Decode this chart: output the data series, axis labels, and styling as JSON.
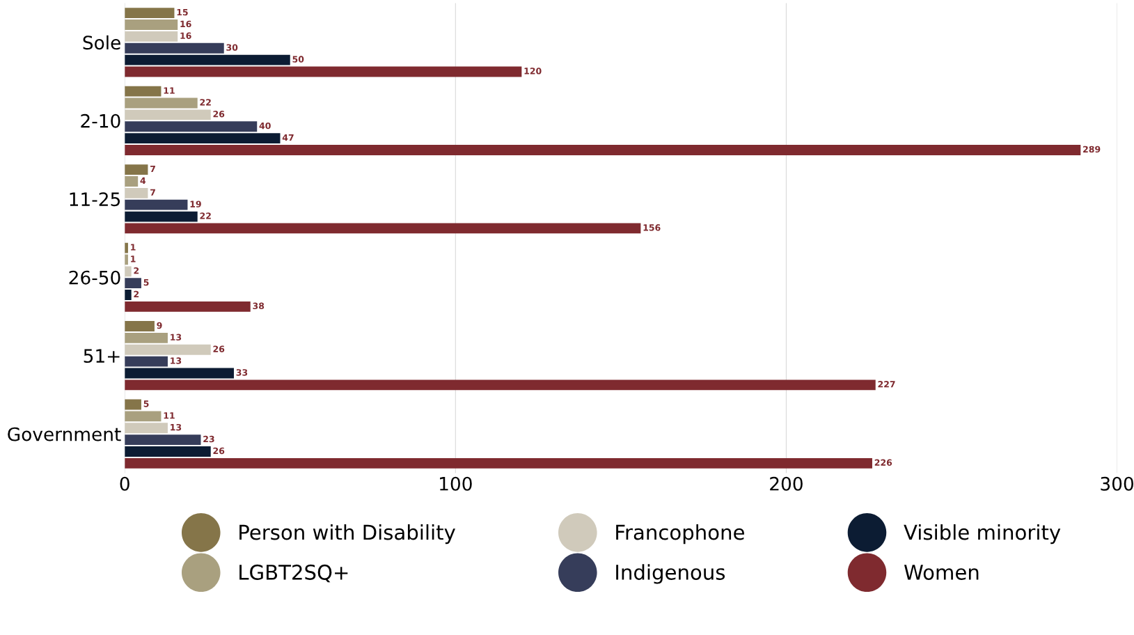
{
  "chart_data": {
    "type": "bar",
    "orientation": "horizontal",
    "categories": [
      "Sole",
      "2-10",
      "11-25",
      "26-50",
      "51+",
      "Government"
    ],
    "series": [
      {
        "name": "Person with Disability",
        "color": "#857549",
        "values": [
          15,
          11,
          7,
          1,
          9,
          5
        ]
      },
      {
        "name": "LGBT2SQ+",
        "color": "#a9a07f",
        "values": [
          16,
          22,
          4,
          1,
          13,
          11
        ]
      },
      {
        "name": "Francophone",
        "color": "#d0cabb",
        "values": [
          16,
          26,
          7,
          2,
          26,
          13
        ]
      },
      {
        "name": "Indigenous",
        "color": "#363d5a",
        "values": [
          30,
          40,
          19,
          5,
          13,
          23
        ]
      },
      {
        "name": "Visible minority",
        "color": "#0c1c33",
        "values": [
          50,
          47,
          22,
          2,
          33,
          26
        ]
      },
      {
        "name": "Women",
        "color": "#7f2a2f",
        "values": [
          120,
          289,
          156,
          38,
          227,
          226
        ]
      }
    ],
    "xlim": [
      0,
      300
    ],
    "xticks": [
      0,
      100,
      200,
      300
    ],
    "grid": "x",
    "data_labels": true,
    "legend": "bottom"
  }
}
